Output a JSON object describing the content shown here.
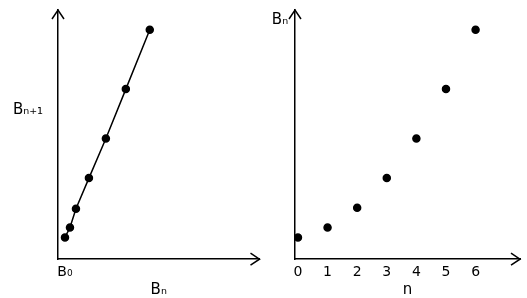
{
  "chart_data": [
    {
      "type": "scatter",
      "x": [
        0.7,
        1.2,
        1.8,
        3.1,
        4.8,
        6.8,
        9.2
      ],
      "values": [
        1.1,
        1.6,
        2.55,
        4.1,
        6.1,
        8.6,
        11.6
      ],
      "color": "#000000",
      "marker": "circle",
      "line_style": "solid",
      "x_label": "Bₙ",
      "y_label": "Bₙ₊₁",
      "xlim": [
        0,
        20.2
      ],
      "ylim": [
        0,
        12.6
      ],
      "xticks": [
        {
          "value": 0.7,
          "label": "B₀"
        }
      ],
      "tick_labels": "x",
      "grid": false
    },
    {
      "type": "scatter",
      "x": [
        0,
        1,
        2,
        3,
        4,
        5,
        6
      ],
      "values": [
        1.1,
        1.6,
        2.6,
        4.1,
        6.1,
        8.6,
        11.6
      ],
      "color": "#000000",
      "marker": "circle",
      "line_style": "none",
      "x_label": "n",
      "y_label": "Bₙ",
      "xlim": [
        -0.1,
        7.5
      ],
      "ylim": [
        0,
        12.6
      ],
      "xticks": [
        0,
        1,
        2,
        3,
        4,
        5,
        6
      ],
      "tick_labels": "x",
      "grid": false
    }
  ]
}
